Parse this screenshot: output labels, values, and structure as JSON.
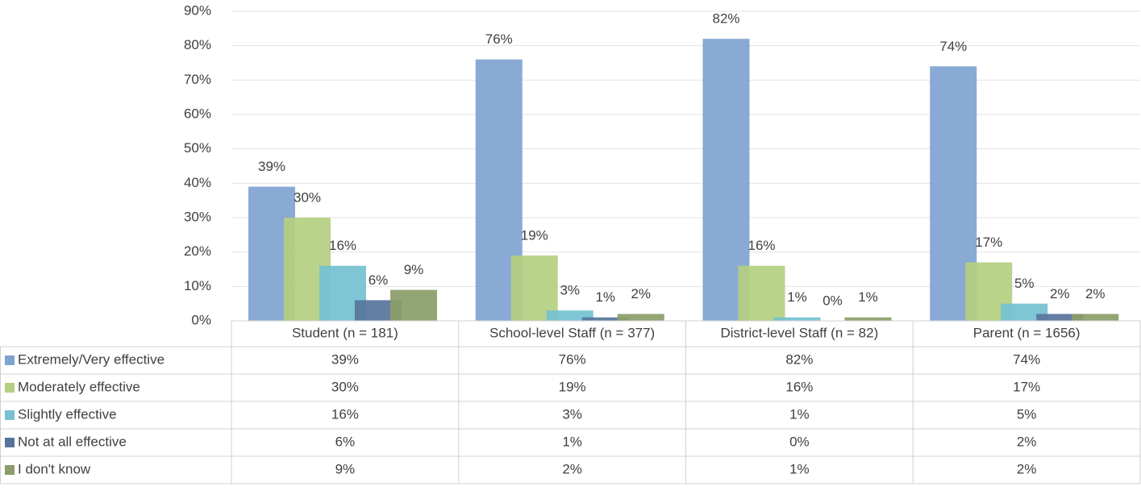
{
  "chart_data": {
    "type": "bar",
    "categories": [
      "Student (n = 181)",
      "School-level Staff (n = 377)",
      "District-level Staff (n = 82)",
      "Parent (n = 1656)"
    ],
    "series": [
      {
        "name": "Extremely/Very effective",
        "color": "#7fa3d0",
        "values": [
          39,
          76,
          82,
          74
        ],
        "value_labels": [
          "39%",
          "76%",
          "82%",
          "74%"
        ]
      },
      {
        "name": "Moderately effective",
        "color": "#b4cf80",
        "values": [
          30,
          19,
          16,
          17
        ],
        "value_labels": [
          "30%",
          "19%",
          "16%",
          "17%"
        ]
      },
      {
        "name": "Slightly effective",
        "color": "#74c1d1",
        "values": [
          16,
          3,
          1,
          5
        ],
        "value_labels": [
          "16%",
          "3%",
          "1%",
          "5%"
        ]
      },
      {
        "name": "Not at all effective",
        "color": "#58749b",
        "values": [
          6,
          1,
          0,
          2
        ],
        "value_labels": [
          "6%",
          "1%",
          "0%",
          "2%"
        ]
      },
      {
        "name": "I don't know",
        "color": "#8b9d69",
        "values": [
          9,
          2,
          1,
          2
        ],
        "value_labels": [
          "9%",
          "2%",
          "1%",
          "2%"
        ]
      }
    ],
    "ylim": [
      0,
      90
    ],
    "yticks": [
      {
        "value": 0,
        "label": "0%"
      },
      {
        "value": 10,
        "label": "10%"
      },
      {
        "value": 20,
        "label": "20%"
      },
      {
        "value": 30,
        "label": "30%"
      },
      {
        "value": 40,
        "label": "40%"
      },
      {
        "value": 50,
        "label": "50%"
      },
      {
        "value": 60,
        "label": "60%"
      },
      {
        "value": 70,
        "label": "70%"
      },
      {
        "value": 80,
        "label": "80%"
      },
      {
        "value": 90,
        "label": "90%"
      }
    ],
    "grid": true
  }
}
